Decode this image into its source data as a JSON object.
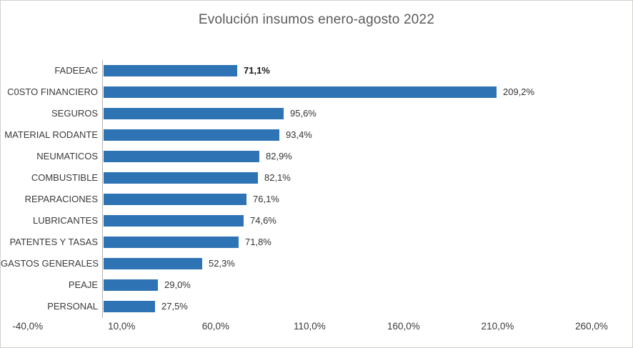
{
  "chart_data": {
    "type": "bar",
    "orientation": "horizontal",
    "title": "Evolución insumos enero-agosto 2022",
    "categories": [
      "FADEEAC",
      "C0STO FINANCIERO",
      "SEGUROS",
      "MATERIAL RODANTE",
      "NEUMATICOS",
      "COMBUSTIBLE",
      "REPARACIONES",
      "LUBRICANTES",
      "PATENTES Y TASAS",
      "GASTOS GENERALES",
      "PEAJE",
      "PERSONAL"
    ],
    "values": [
      71.1,
      209.2,
      95.6,
      93.4,
      82.9,
      82.1,
      76.1,
      74.6,
      71.8,
      52.3,
      29.0,
      27.5
    ],
    "data_labels": [
      "71,1%",
      "209,2%",
      "95,6%",
      "93,4%",
      "82,9%",
      "82,1%",
      "76,1%",
      "74,6%",
      "71,8%",
      "52,3%",
      "29,0%",
      "27,5%"
    ],
    "bold_label_index": 0,
    "xlim": [
      -40,
      260
    ],
    "x_ticks": [
      -40,
      10,
      60,
      110,
      160,
      210,
      260
    ],
    "x_tick_labels": [
      "-40,0%",
      "10,0%",
      "60,0%",
      "110,0%",
      "160,0%",
      "210,0%",
      "260,0%"
    ],
    "bar_color": "#2e74b5",
    "grid": false,
    "legend": false
  }
}
